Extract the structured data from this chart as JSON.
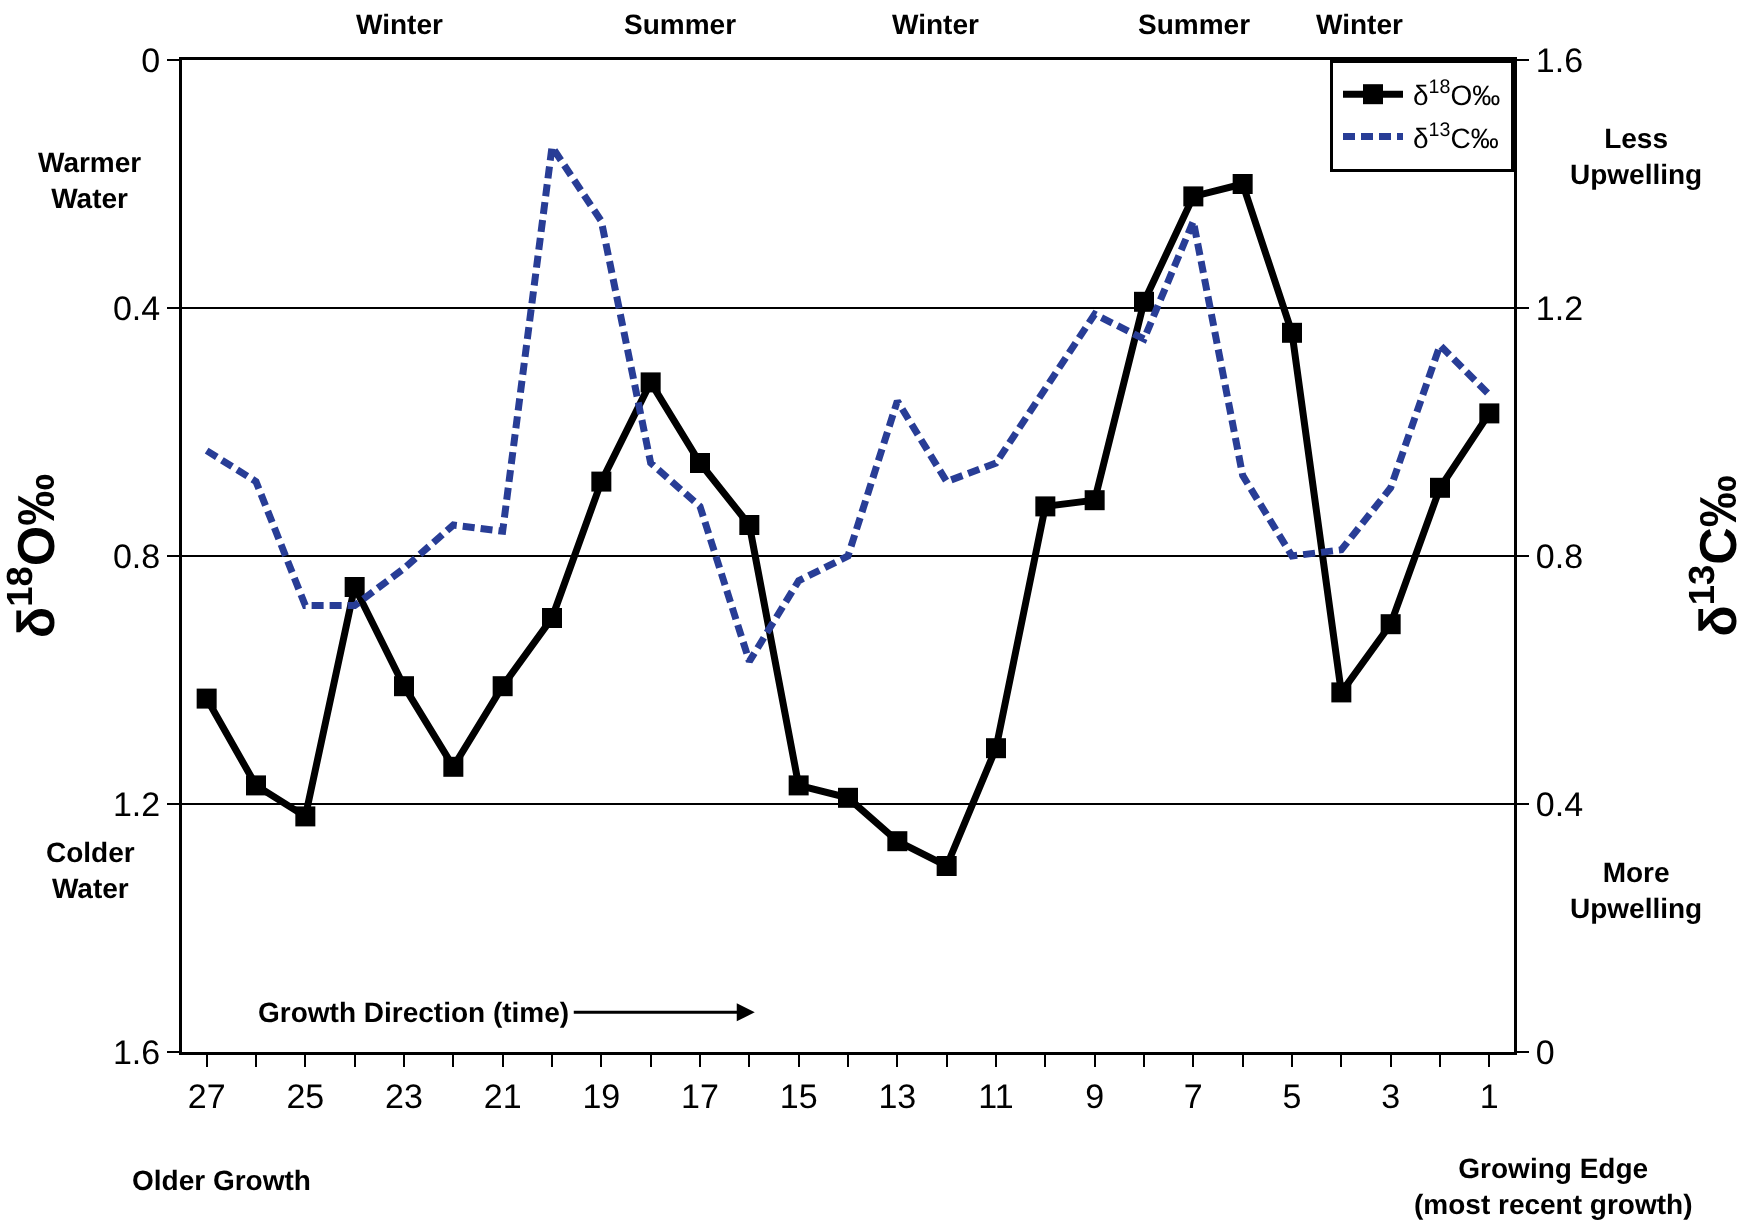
{
  "chart_data": {
    "type": "line",
    "ylabel": "δ$^{18}$O‰",
    "y2label": "δ$^{13}$C‰",
    "categories": [
      "27",
      null,
      "25",
      null,
      "23",
      null,
      "21",
      null,
      "19",
      null,
      "17",
      null,
      "15",
      null,
      "13",
      null,
      "11",
      null,
      "9",
      null,
      "7",
      null,
      "5",
      null,
      "3",
      null,
      "1"
    ],
    "series": [
      {
        "name": "δ$^{18}$O‰",
        "color": "#000000",
        "marker": "square",
        "line_style": "solid",
        "values": [
          1.03,
          1.17,
          1.22,
          0.85,
          1.01,
          1.14,
          1.01,
          0.9,
          0.68,
          0.52,
          0.65,
          0.75,
          1.17,
          1.19,
          1.26,
          1.3,
          1.11,
          0.72,
          0.71,
          0.39,
          0.22,
          0.2,
          0.44,
          1.02,
          0.91,
          0.69,
          0.57
        ]
      },
      {
        "name": "δ$^{13}$C‰",
        "color": "#283d96",
        "marker": "none",
        "line_style": "dashed",
        "axis": "y2",
        "values": [
          0.97,
          0.92,
          0.72,
          0.72,
          0.78,
          0.85,
          0.84,
          1.46,
          1.34,
          0.95,
          0.88,
          0.63,
          0.76,
          0.8,
          1.05,
          0.92,
          0.95,
          1.07,
          1.19,
          1.15,
          1.34,
          0.93,
          0.8,
          0.81,
          0.91,
          1.14,
          1.06
        ]
      }
    ],
    "ylim": [
      1.6,
      0
    ],
    "yticks": [
      0,
      0.4,
      0.8,
      1.2,
      1.6
    ],
    "y2lim": [
      0,
      1.6
    ],
    "y2ticks": [
      0,
      0.4,
      0.8,
      1.2,
      1.6
    ],
    "grid": "y",
    "legend": "top right",
    "annotations": [
      "Winter",
      "Summer",
      "Winter",
      "Summer",
      "Winter",
      "Warmer Water",
      "Colder Water",
      "Less Upwelling",
      "More Upwelling",
      "Growth Direction (time)",
      "Older Growth",
      "Growing Edge (most recent growth)"
    ]
  }
}
